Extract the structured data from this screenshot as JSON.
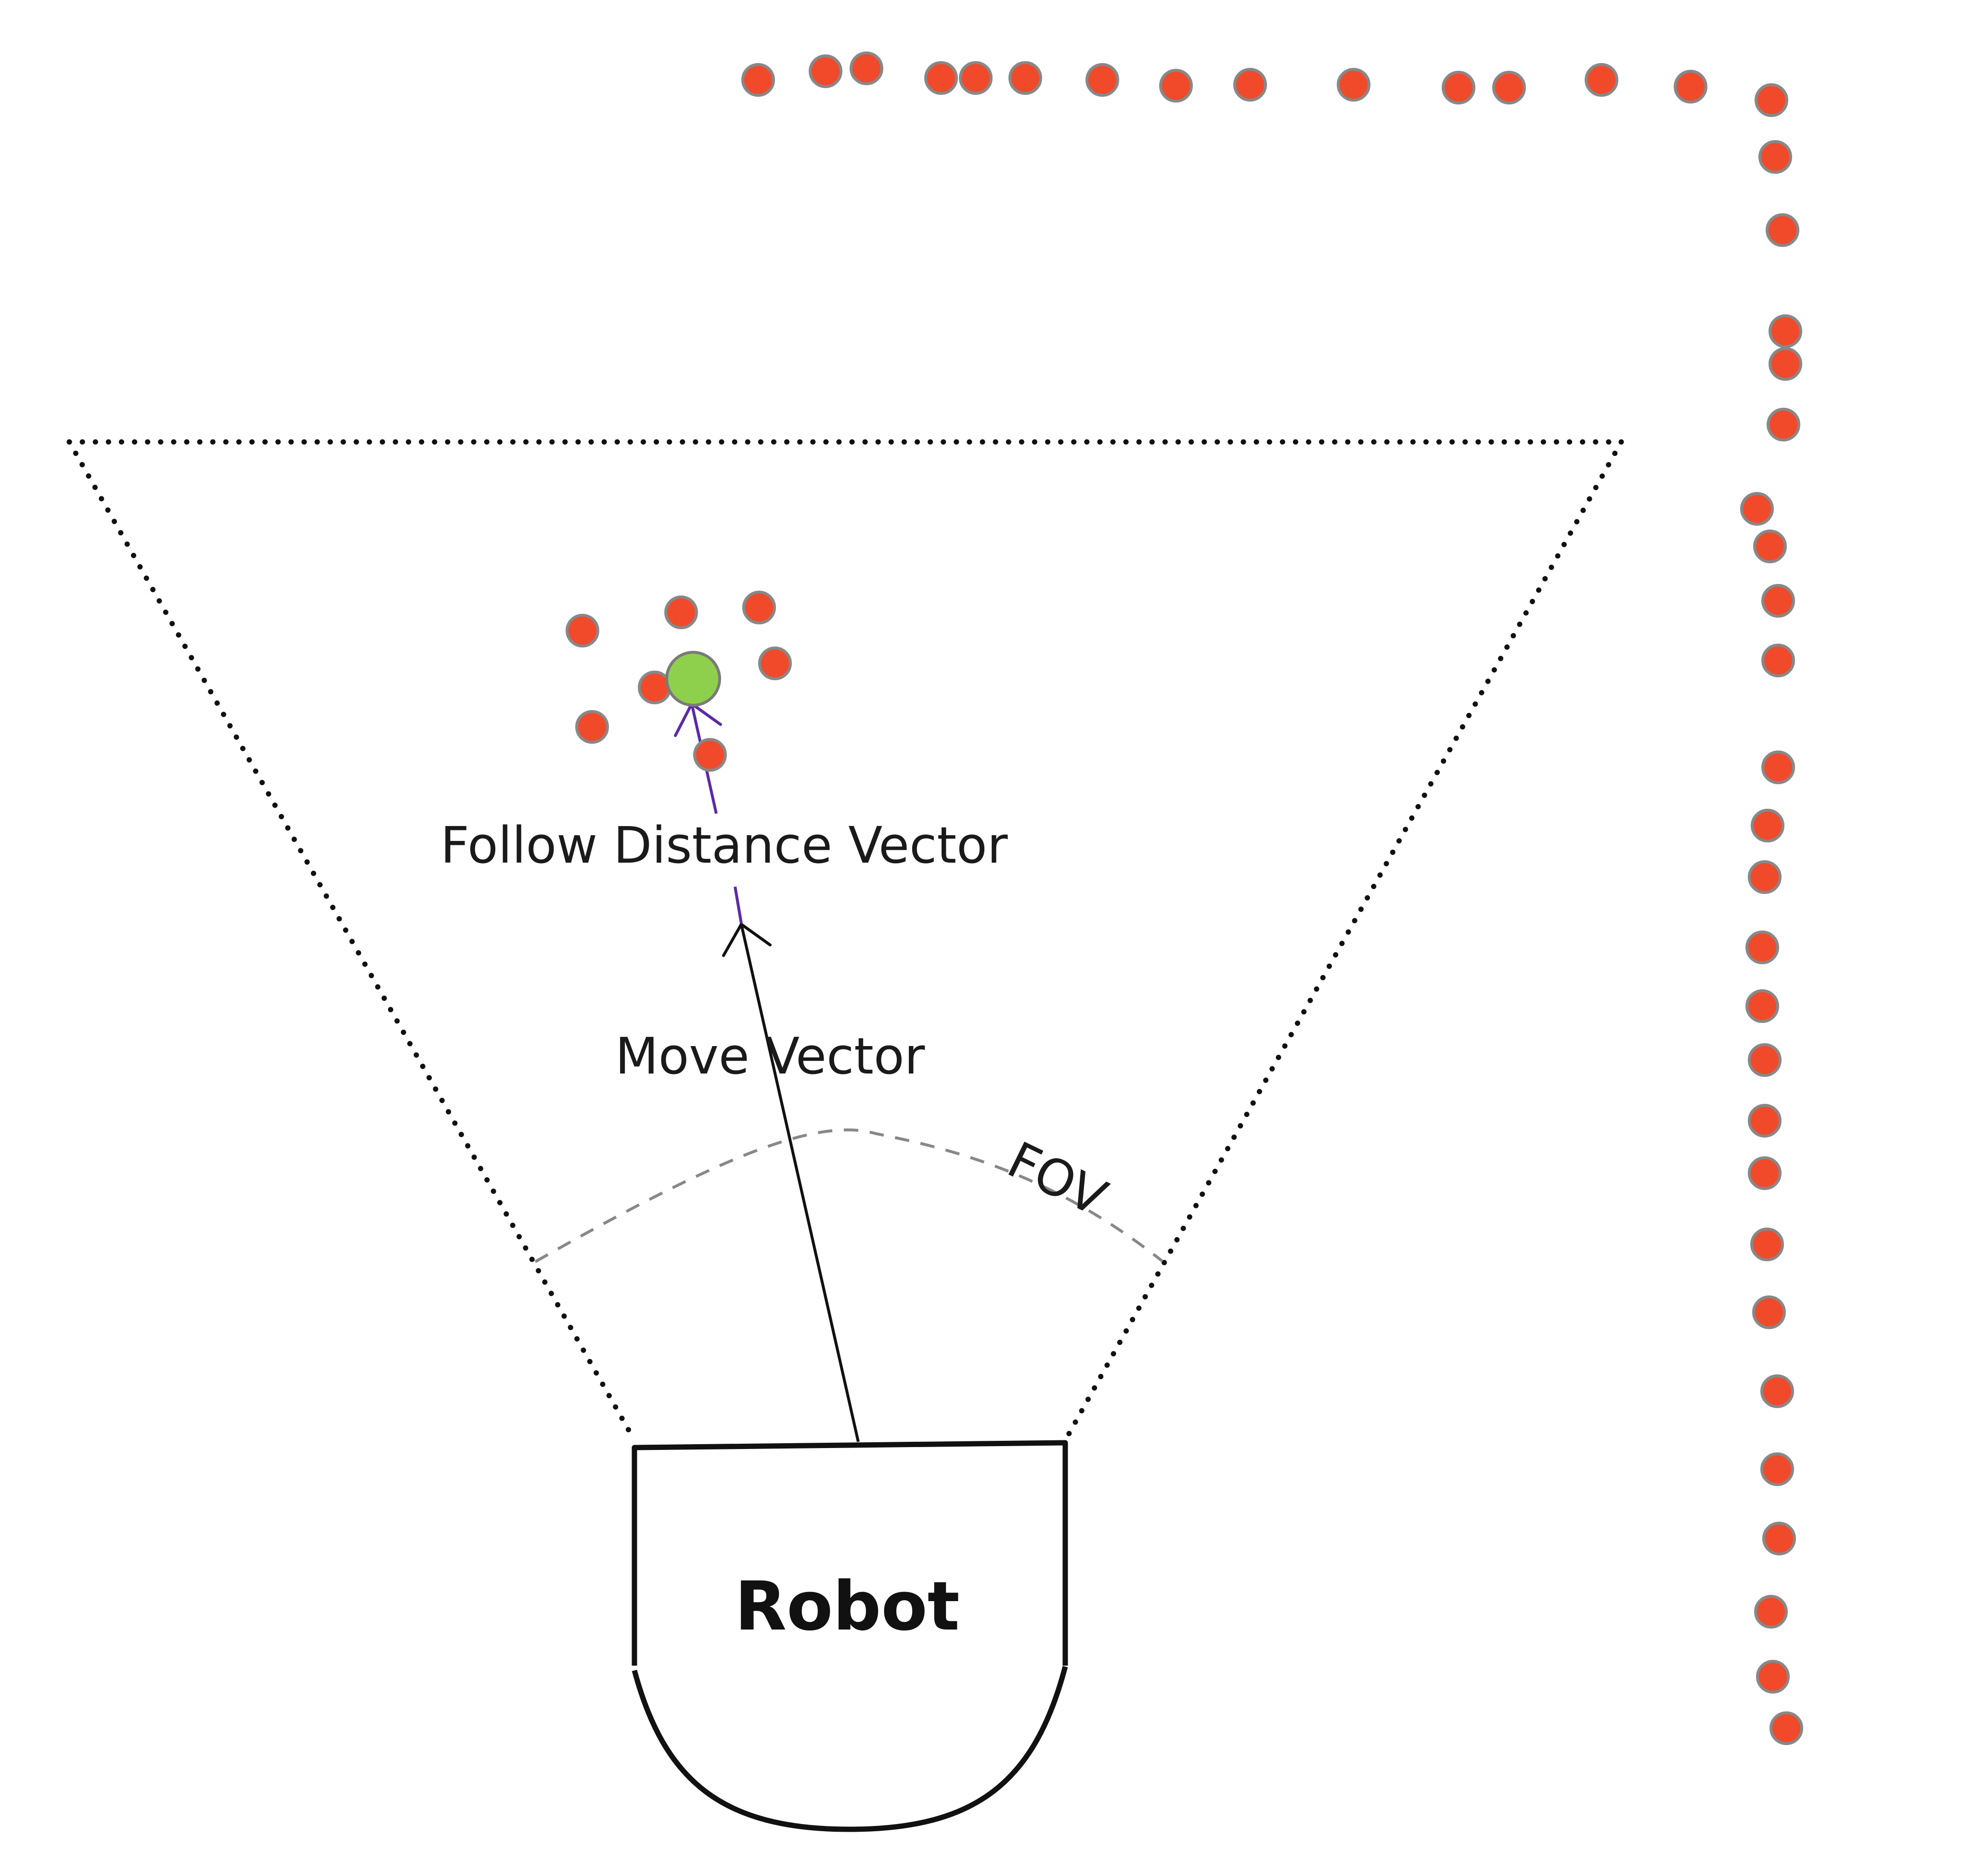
{
  "labels": {
    "follow_distance_vector": "Follow Distance Vector",
    "move_vector": "Move Vector",
    "fov": "FOV",
    "robot": "Robot"
  },
  "colors": {
    "background": "#ffffff",
    "point_fill": "#f04a2a",
    "point_stroke": "#888888",
    "target_fill": "#8ed04b",
    "target_stroke": "#7a7a7a",
    "follow_vector": "#5b2aa8",
    "move_vector": "#111111",
    "fov_arc": "#888888",
    "fov_boundary": "#111111",
    "robot_outline": "#111111"
  },
  "icons": {
    "target": "green-circle",
    "obstacle_point": "red-circle"
  }
}
